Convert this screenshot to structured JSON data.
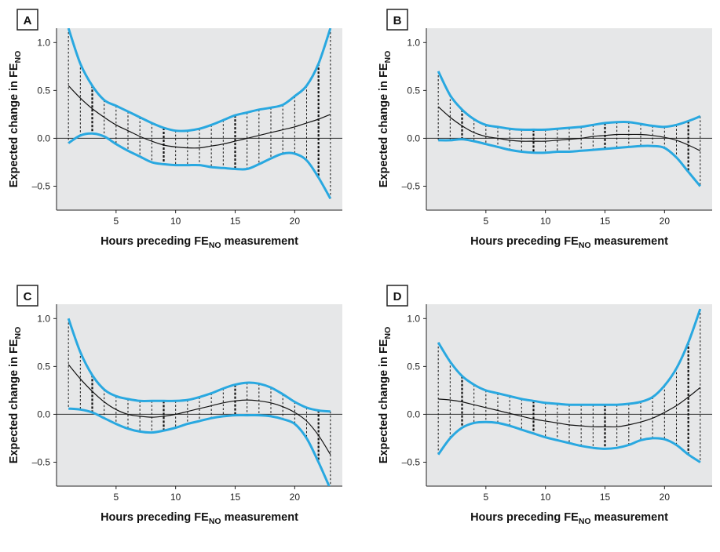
{
  "chart_data": [
    {
      "type": "line",
      "panel": "A",
      "xlabel": "Hours preceding FE",
      "xlabel_sub": "NO",
      "xlabel_tail": " measurement",
      "ylabel": "Expected change in FE",
      "ylabel_sub": "NO",
      "x_ticks": [
        5,
        10,
        15,
        20
      ],
      "y_ticks": [
        -0.5,
        0.0,
        0.5,
        1.0
      ],
      "y_tick_labels": [
        "–0.5",
        "0.0",
        "0.5",
        "1.0"
      ],
      "xlim": [
        0,
        24
      ],
      "ylim": [
        -0.75,
        1.15
      ],
      "x": [
        1,
        2,
        3,
        4,
        5,
        6,
        7,
        8,
        9,
        10,
        11,
        12,
        13,
        14,
        15,
        16,
        17,
        18,
        19,
        20,
        21,
        22,
        23
      ],
      "series": [
        {
          "role": "estimate",
          "values": [
            0.55,
            0.42,
            0.31,
            0.22,
            0.14,
            0.08,
            0.02,
            -0.03,
            -0.07,
            -0.09,
            -0.1,
            -0.1,
            -0.08,
            -0.06,
            -0.03,
            0.0,
            0.03,
            0.06,
            0.09,
            0.12,
            0.16,
            0.2,
            0.25
          ]
        },
        {
          "role": "upper",
          "values": [
            1.15,
            0.78,
            0.55,
            0.4,
            0.34,
            0.28,
            0.22,
            0.16,
            0.11,
            0.08,
            0.08,
            0.1,
            0.14,
            0.19,
            0.24,
            0.27,
            0.3,
            0.32,
            0.35,
            0.44,
            0.55,
            0.78,
            1.15
          ]
        },
        {
          "role": "lower",
          "values": [
            -0.05,
            0.03,
            0.05,
            0.02,
            -0.06,
            -0.13,
            -0.19,
            -0.25,
            -0.27,
            -0.28,
            -0.28,
            -0.28,
            -0.3,
            -0.31,
            -0.32,
            -0.32,
            -0.27,
            -0.21,
            -0.16,
            -0.16,
            -0.23,
            -0.41,
            -0.63
          ]
        }
      ]
    },
    {
      "type": "line",
      "panel": "B",
      "xlabel": "Hours preceding FE",
      "xlabel_sub": "NO",
      "xlabel_tail": " measurement",
      "ylabel": "Expected change in FE",
      "ylabel_sub": "NO",
      "x_ticks": [
        5,
        10,
        15,
        20
      ],
      "y_ticks": [
        -0.5,
        0.0,
        0.5,
        1.0
      ],
      "y_tick_labels": [
        "–0.5",
        "0.0",
        "0.5",
        "1.0"
      ],
      "xlim": [
        0,
        24
      ],
      "ylim": [
        -0.75,
        1.15
      ],
      "x": [
        1,
        2,
        3,
        4,
        5,
        6,
        7,
        8,
        9,
        10,
        11,
        12,
        13,
        14,
        15,
        16,
        17,
        18,
        19,
        20,
        21,
        22,
        23
      ],
      "series": [
        {
          "role": "estimate",
          "values": [
            0.33,
            0.22,
            0.13,
            0.06,
            0.02,
            0.0,
            -0.02,
            -0.03,
            -0.03,
            -0.03,
            -0.02,
            -0.01,
            0.0,
            0.02,
            0.03,
            0.04,
            0.04,
            0.04,
            0.03,
            0.01,
            -0.02,
            -0.07,
            -0.13
          ]
        },
        {
          "role": "upper",
          "values": [
            0.7,
            0.45,
            0.3,
            0.2,
            0.14,
            0.12,
            0.1,
            0.09,
            0.09,
            0.09,
            0.1,
            0.11,
            0.12,
            0.14,
            0.16,
            0.17,
            0.17,
            0.15,
            0.13,
            0.12,
            0.14,
            0.18,
            0.23
          ]
        },
        {
          "role": "lower",
          "values": [
            -0.02,
            -0.02,
            -0.01,
            -0.03,
            -0.06,
            -0.09,
            -0.12,
            -0.14,
            -0.15,
            -0.15,
            -0.14,
            -0.14,
            -0.13,
            -0.12,
            -0.11,
            -0.1,
            -0.09,
            -0.08,
            -0.08,
            -0.1,
            -0.2,
            -0.35,
            -0.5
          ]
        }
      ]
    },
    {
      "type": "line",
      "panel": "C",
      "xlabel": "Hours preceding FE",
      "xlabel_sub": "NO",
      "xlabel_tail": " measurement",
      "ylabel": "Expected change in FE",
      "ylabel_sub": "NO",
      "x_ticks": [
        5,
        10,
        15,
        20
      ],
      "y_ticks": [
        -0.5,
        0.0,
        0.5,
        1.0
      ],
      "y_tick_labels": [
        "–0.5",
        "0.0",
        "0.5",
        "1.0"
      ],
      "xlim": [
        0,
        24
      ],
      "ylim": [
        -0.75,
        1.15
      ],
      "x": [
        1,
        2,
        3,
        4,
        5,
        6,
        7,
        8,
        9,
        10,
        11,
        12,
        13,
        14,
        15,
        16,
        17,
        18,
        19,
        20,
        21,
        22,
        23
      ],
      "series": [
        {
          "role": "estimate",
          "values": [
            0.52,
            0.37,
            0.24,
            0.13,
            0.05,
            0.0,
            -0.02,
            -0.03,
            -0.02,
            0.0,
            0.03,
            0.06,
            0.09,
            0.12,
            0.14,
            0.15,
            0.14,
            0.12,
            0.08,
            0.02,
            -0.07,
            -0.22,
            -0.42
          ]
        },
        {
          "role": "upper",
          "values": [
            1.0,
            0.65,
            0.41,
            0.26,
            0.19,
            0.16,
            0.14,
            0.14,
            0.14,
            0.14,
            0.15,
            0.18,
            0.22,
            0.27,
            0.31,
            0.33,
            0.32,
            0.28,
            0.21,
            0.13,
            0.07,
            0.04,
            0.03
          ]
        },
        {
          "role": "lower",
          "values": [
            0.06,
            0.05,
            0.02,
            -0.04,
            -0.1,
            -0.15,
            -0.18,
            -0.19,
            -0.17,
            -0.14,
            -0.1,
            -0.07,
            -0.04,
            -0.02,
            -0.01,
            -0.01,
            -0.01,
            -0.02,
            -0.05,
            -0.1,
            -0.25,
            -0.5,
            -0.78
          ]
        }
      ]
    },
    {
      "type": "line",
      "panel": "D",
      "xlabel": "Hours preceding FE",
      "xlabel_sub": "NO",
      "xlabel_tail": " measurement",
      "ylabel": "Expected change in FE",
      "ylabel_sub": "NO",
      "x_ticks": [
        5,
        10,
        15,
        20
      ],
      "y_ticks": [
        -0.5,
        0.0,
        0.5,
        1.0
      ],
      "y_tick_labels": [
        "–0.5",
        "0.0",
        "0.5",
        "1.0"
      ],
      "xlim": [
        0,
        24
      ],
      "ylim": [
        -0.75,
        1.15
      ],
      "x": [
        1,
        2,
        3,
        4,
        5,
        6,
        7,
        8,
        9,
        10,
        11,
        12,
        13,
        14,
        15,
        16,
        17,
        18,
        19,
        20,
        21,
        22,
        23
      ],
      "series": [
        {
          "role": "estimate",
          "values": [
            0.16,
            0.15,
            0.13,
            0.1,
            0.07,
            0.04,
            0.01,
            -0.02,
            -0.05,
            -0.07,
            -0.09,
            -0.11,
            -0.12,
            -0.13,
            -0.13,
            -0.13,
            -0.11,
            -0.08,
            -0.04,
            0.02,
            0.09,
            0.18,
            0.28
          ]
        },
        {
          "role": "upper",
          "values": [
            0.75,
            0.55,
            0.4,
            0.31,
            0.25,
            0.22,
            0.19,
            0.16,
            0.14,
            0.12,
            0.11,
            0.1,
            0.1,
            0.1,
            0.1,
            0.1,
            0.11,
            0.13,
            0.18,
            0.3,
            0.48,
            0.75,
            1.1
          ]
        },
        {
          "role": "lower",
          "values": [
            -0.42,
            -0.25,
            -0.14,
            -0.09,
            -0.08,
            -0.09,
            -0.12,
            -0.16,
            -0.2,
            -0.24,
            -0.27,
            -0.3,
            -0.33,
            -0.35,
            -0.36,
            -0.35,
            -0.32,
            -0.27,
            -0.25,
            -0.26,
            -0.32,
            -0.42,
            -0.5
          ]
        }
      ]
    }
  ]
}
